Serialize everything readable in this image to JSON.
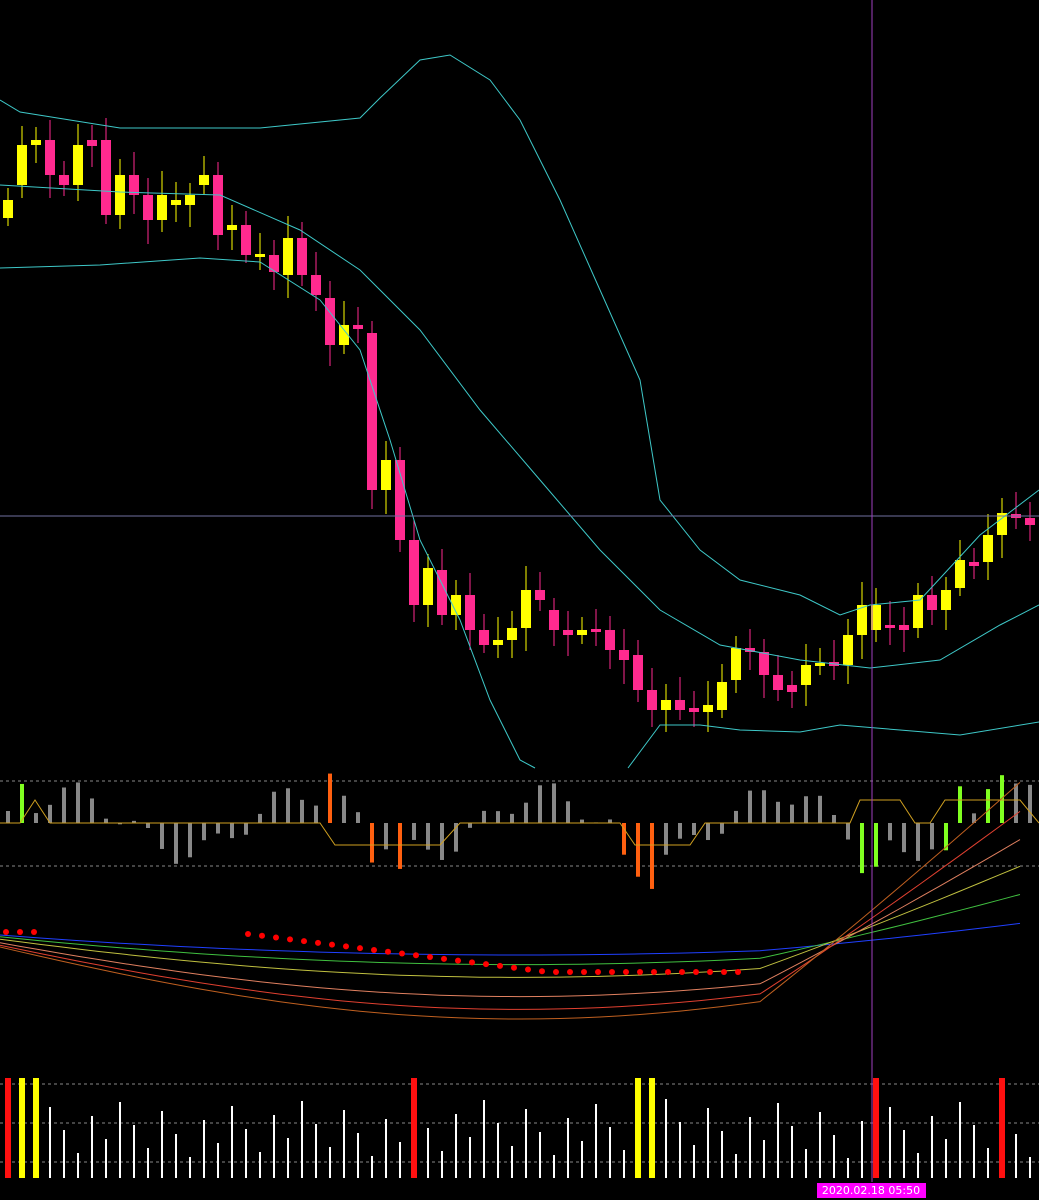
{
  "cursor": {
    "time_label": "2020.02.18 05:50"
  }
}
